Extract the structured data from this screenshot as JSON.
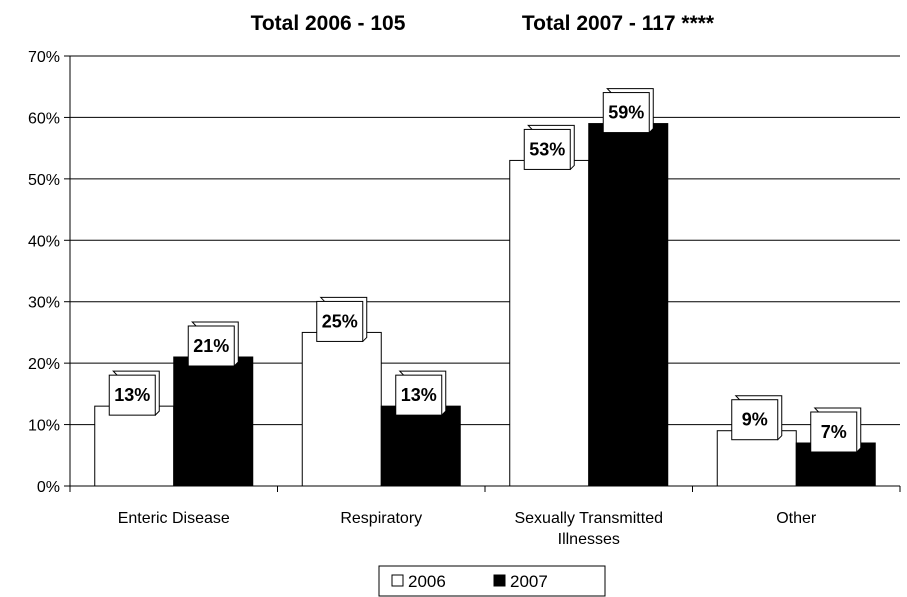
{
  "chart_data": {
    "type": "bar",
    "titles": [
      "Total 2006 - 105",
      "Total 2007 - 117 ****"
    ],
    "categories": [
      [
        "Enteric Disease"
      ],
      [
        "Respiratory"
      ],
      [
        "Sexually Transmitted",
        "Illnesses"
      ],
      [
        "Other"
      ]
    ],
    "series": [
      {
        "name": "2006",
        "values": [
          13,
          25,
          53,
          9
        ],
        "color": "#ffffff",
        "labels": [
          "13%",
          "25%",
          "53%",
          "9%"
        ]
      },
      {
        "name": "2007",
        "values": [
          21,
          13,
          59,
          7
        ],
        "color": "#000000",
        "labels": [
          "21%",
          "13%",
          "59%",
          "7%"
        ]
      }
    ],
    "ylim": [
      0,
      70
    ],
    "yticks": [
      "0%",
      "10%",
      "20%",
      "30%",
      "40%",
      "50%",
      "60%",
      "70%"
    ],
    "grid": true,
    "legend_position": "bottom"
  }
}
